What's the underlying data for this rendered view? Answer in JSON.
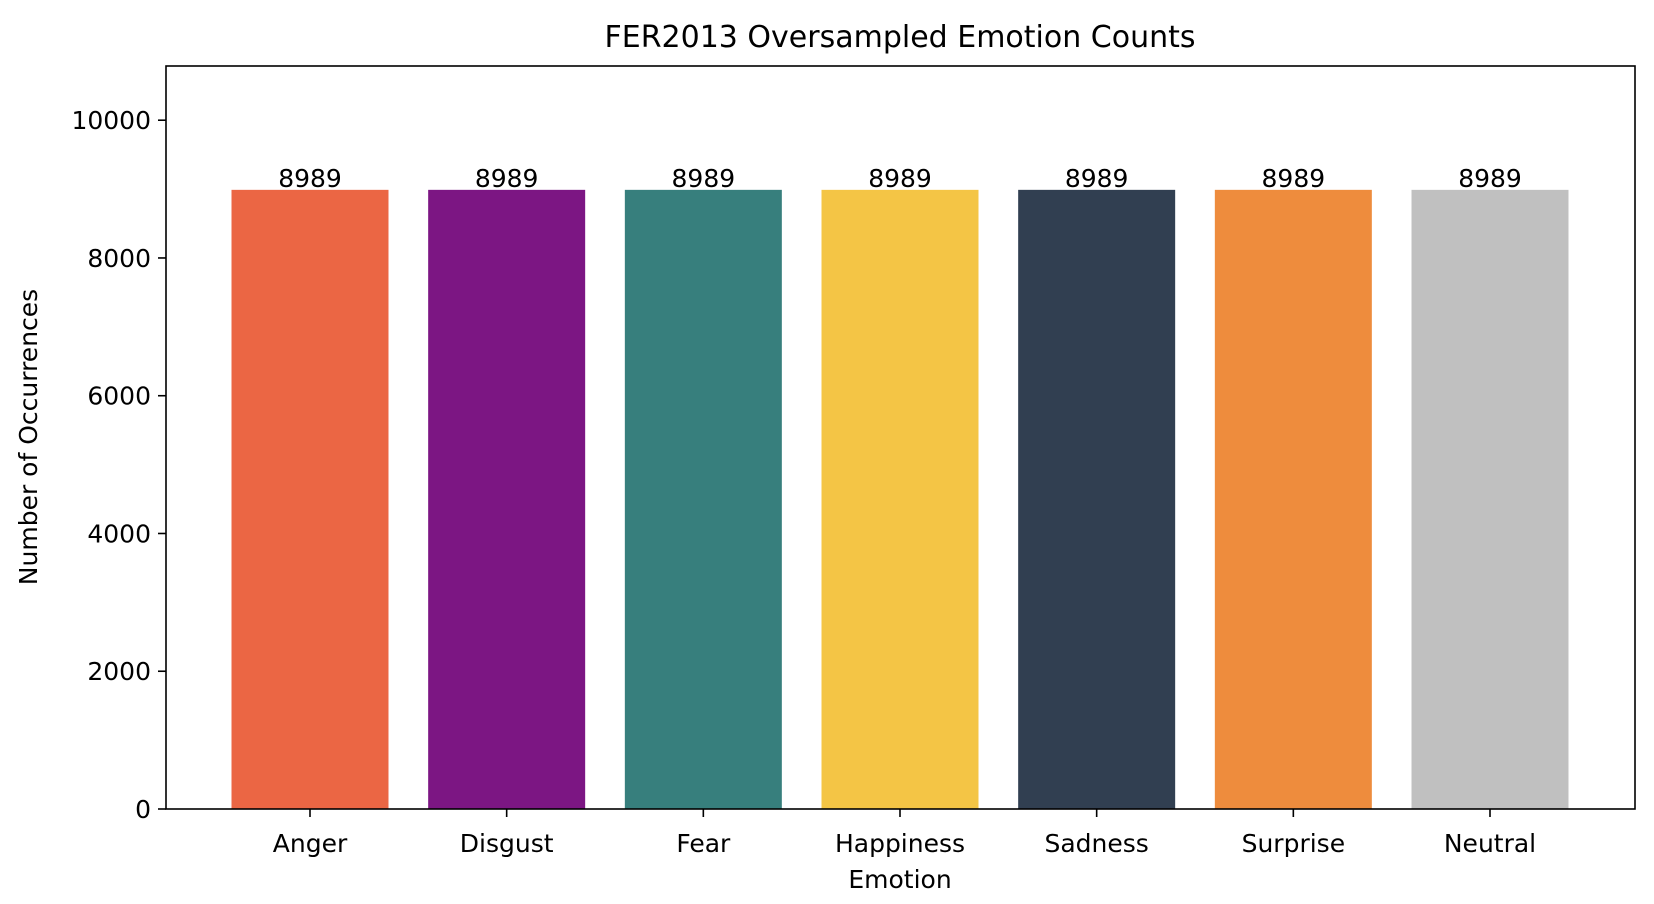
{
  "chart_data": {
    "type": "bar",
    "title": "FER2013 Oversampled Emotion Counts",
    "xlabel": "Emotion",
    "ylabel": "Number of Occurrences",
    "categories": [
      "Anger",
      "Disgust",
      "Fear",
      "Happiness",
      "Sadness",
      "Surprise",
      "Neutral"
    ],
    "values": [
      8989,
      8989,
      8989,
      8989,
      8989,
      8989,
      8989
    ],
    "data_labels": [
      "8989",
      "8989",
      "8989",
      "8989",
      "8989",
      "8989",
      "8989"
    ],
    "colors": [
      "#EB6644",
      "#7C1683",
      "#377F7D",
      "#F4C545",
      "#313F51",
      "#EE8C3D",
      "#C0C0C0"
    ],
    "ylim": [
      0,
      10787
    ],
    "yticks": [
      0,
      2000,
      4000,
      6000,
      8000,
      10000
    ],
    "ytick_labels": [
      "0",
      "2000",
      "4000",
      "6000",
      "8000",
      "10000"
    ],
    "grid": false,
    "legend": false
  }
}
